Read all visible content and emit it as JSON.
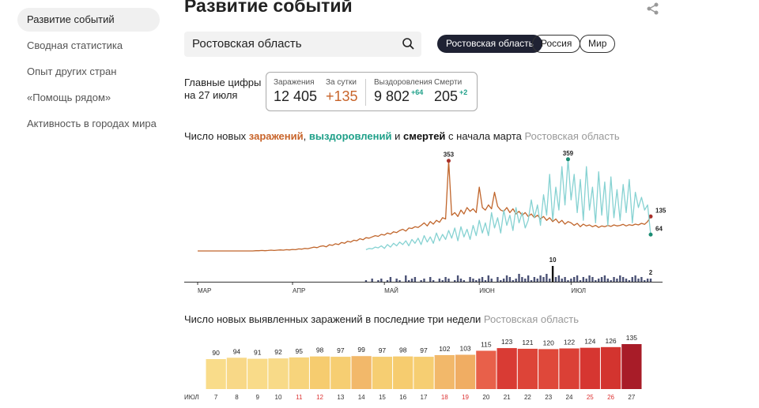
{
  "sidebar": {
    "items": [
      "Развитие событий",
      "Сводная статистика",
      "Опыт других стран",
      "«Помощь рядом»",
      "Активность в городах мира"
    ],
    "active": 0
  },
  "header": {
    "title": "Развитие событий"
  },
  "search": {
    "value": "Ростовская область"
  },
  "regions": {
    "items": [
      "Ростовская область",
      "Россия",
      "Мир"
    ],
    "active": 0
  },
  "key_figures": {
    "label": [
      "Главные цифры",
      "на 27 июля"
    ],
    "stats": [
      {
        "label": "Заражения",
        "value": "12 405"
      },
      {
        "label": "За сутки",
        "value": "+135"
      },
      {
        "label": "Выздоровления",
        "value": "9 802",
        "delta": "+64"
      },
      {
        "label": "Смерти",
        "value": "205",
        "delta": "+2"
      }
    ]
  },
  "chart_data": [
    {
      "type": "line",
      "title_parts": [
        {
          "text": "Число новых",
          "color": "#222222"
        },
        {
          "text": "заражений",
          "color": "#c8642a",
          "bold": true
        },
        {
          "text": ",",
          "color": "#222222",
          "nogap": true
        },
        {
          "text": "выздоровлений",
          "color": "#1fa089",
          "bold": true
        },
        {
          "text": "и",
          "color": "#222222"
        },
        {
          "text": "смертей",
          "color": "#111111",
          "bold": true
        },
        {
          "text": "с начала марта",
          "color": "#222222"
        },
        {
          "text": "Ростовская область",
          "color": "#999999"
        }
      ],
      "xticks": [
        {
          "value": 0,
          "label": "МАР"
        },
        {
          "value": 31,
          "label": "АПР"
        },
        {
          "value": 61,
          "label": "МАЙ"
        },
        {
          "value": 92,
          "label": "ИЮН"
        },
        {
          "value": 122,
          "label": "ИЮЛ"
        }
      ],
      "xlim": [
        0,
        148
      ],
      "ylim": [
        0,
        380
      ],
      "bar_ylim": [
        0,
        10
      ],
      "series": [
        {
          "name": "заражений",
          "color": "#c0652b",
          "marker_color": "#a8302a",
          "labeled": [
            82,
            148
          ],
          "values": [
            0,
            0,
            0,
            0,
            0,
            0,
            0,
            0,
            0,
            0,
            0,
            0,
            0,
            0,
            0,
            0,
            0,
            0,
            0,
            1,
            1,
            2,
            1,
            2,
            3,
            2,
            3,
            4,
            3,
            5,
            4,
            6,
            5,
            8,
            7,
            10,
            9,
            12,
            15,
            13,
            18,
            20,
            16,
            24,
            22,
            28,
            25,
            33,
            30,
            38,
            35,
            42,
            40,
            48,
            44,
            52,
            50,
            55,
            60,
            57,
            65,
            62,
            70,
            66,
            75,
            72,
            80,
            85,
            78,
            90,
            88,
            95,
            92,
            100,
            110,
            98,
            115,
            105,
            120,
            112,
            130,
            125,
            353,
            140,
            150,
            135,
            160,
            145,
            170,
            155,
            165,
            150,
            250,
            170,
            160,
            180,
            165,
            230,
            175,
            160,
            155,
            170,
            150,
            165,
            145,
            155,
            140,
            150,
            135,
            145,
            130,
            140,
            125,
            135,
            120,
            130,
            115,
            125,
            110,
            120,
            105,
            115,
            110,
            100,
            108,
            95,
            105,
            98,
            102,
            95,
            100,
            92,
            98,
            95,
            100,
            96,
            102,
            98,
            100,
            104,
            98,
            103,
            100,
            105,
            102,
            108,
            104,
            115,
            135
          ]
        },
        {
          "name": "выздоровлений",
          "color": "#86d2d2",
          "marker_color": "#1a8c72",
          "labeled": [
            121,
            148
          ],
          "values": [
            null,
            null,
            null,
            null,
            null,
            null,
            null,
            null,
            null,
            null,
            null,
            null,
            null,
            null,
            null,
            null,
            null,
            null,
            null,
            null,
            null,
            null,
            null,
            null,
            null,
            null,
            null,
            null,
            null,
            null,
            null,
            null,
            null,
            null,
            null,
            null,
            null,
            null,
            null,
            null,
            null,
            null,
            null,
            null,
            null,
            null,
            null,
            null,
            null,
            null,
            null,
            null,
            null,
            null,
            null,
            5,
            10,
            8,
            15,
            12,
            20,
            10,
            25,
            15,
            30,
            20,
            35,
            25,
            40,
            20,
            45,
            30,
            50,
            25,
            60,
            35,
            55,
            30,
            70,
            40,
            65,
            45,
            80,
            50,
            90,
            40,
            95,
            55,
            85,
            45,
            100,
            60,
            120,
            70,
            110,
            60,
            150,
            90,
            130,
            70,
            160,
            100,
            140,
            80,
            170,
            110,
            150,
            90,
            120,
            200,
            130,
            180,
            100,
            220,
            140,
            300,
            120,
            250,
            160,
            330,
            180,
            359,
            200,
            300,
            150,
            280,
            120,
            330,
            160,
            250,
            110,
            310,
            140,
            270,
            100,
            290,
            130,
            240,
            120,
            260,
            150,
            280,
            110,
            230,
            170,
            210,
            160,
            180,
            64
          ]
        },
        {
          "name": "смертей",
          "color": "#4b5275",
          "marker_color": "#111111",
          "axis": "bars",
          "labeled": [
            116,
            148
          ],
          "values": [
            null,
            null,
            null,
            null,
            null,
            null,
            null,
            null,
            null,
            null,
            null,
            null,
            null,
            null,
            null,
            null,
            null,
            null,
            null,
            null,
            null,
            null,
            null,
            null,
            null,
            null,
            null,
            null,
            null,
            null,
            null,
            null,
            null,
            null,
            null,
            null,
            null,
            null,
            null,
            null,
            null,
            null,
            null,
            null,
            null,
            null,
            null,
            null,
            null,
            null,
            null,
            null,
            null,
            null,
            null,
            1,
            0,
            2,
            0,
            1,
            2,
            0,
            1,
            3,
            0,
            2,
            1,
            0,
            4,
            1,
            2,
            3,
            0,
            1,
            2,
            0,
            3,
            1,
            0,
            2,
            1,
            3,
            2,
            0,
            1,
            4,
            2,
            1,
            0,
            3,
            2,
            1,
            2,
            3,
            1,
            4,
            2,
            0,
            3,
            1,
            2,
            4,
            3,
            1,
            2,
            5,
            3,
            2,
            4,
            1,
            3,
            2,
            4,
            3,
            5,
            2,
            10,
            3,
            4,
            2,
            3,
            1,
            2,
            3,
            4,
            1,
            3,
            2,
            4,
            3,
            1,
            2,
            3,
            4,
            2,
            1,
            3,
            2,
            4,
            3,
            2,
            1,
            3,
            4,
            2,
            3,
            1,
            2,
            2
          ]
        }
      ]
    },
    {
      "type": "bar",
      "title": "Число новых выявленных заражений в последние три недели",
      "subtitle": "Ростовская область",
      "x_label": "ИЮЛ",
      "categories": [
        "7",
        "8",
        "9",
        "10",
        "11",
        "12",
        "13",
        "14",
        "15",
        "16",
        "17",
        "18",
        "19",
        "20",
        "21",
        "22",
        "23",
        "24",
        "25",
        "26",
        "27"
      ],
      "values": [
        90,
        94,
        91,
        92,
        95,
        98,
        97,
        99,
        97,
        98,
        97,
        102,
        103,
        115,
        123,
        121,
        120,
        122,
        124,
        126,
        135
      ],
      "colors": [
        "#f9dc8a",
        "#f8d887",
        "#f9db89",
        "#f8da88",
        "#f7d47c",
        "#f6cc6f",
        "#f6ce72",
        "#f2b86a",
        "#f6ce72",
        "#f6cc6f",
        "#f6ce72",
        "#f2b86a",
        "#f0ad63",
        "#e8604a",
        "#d93b34",
        "#dd4438",
        "#df483a",
        "#db4036",
        "#d63631",
        "#d3342f",
        "#a81c28"
      ],
      "category_colors": [
        "#333",
        "#333",
        "#333",
        "#333",
        "#d33",
        "#d33",
        "#333",
        "#333",
        "#333",
        "#333",
        "#333",
        "#d33",
        "#d33",
        "#333",
        "#333",
        "#333",
        "#333",
        "#333",
        "#d33",
        "#d33",
        "#333"
      ],
      "ylim": [
        0,
        150
      ]
    }
  ]
}
